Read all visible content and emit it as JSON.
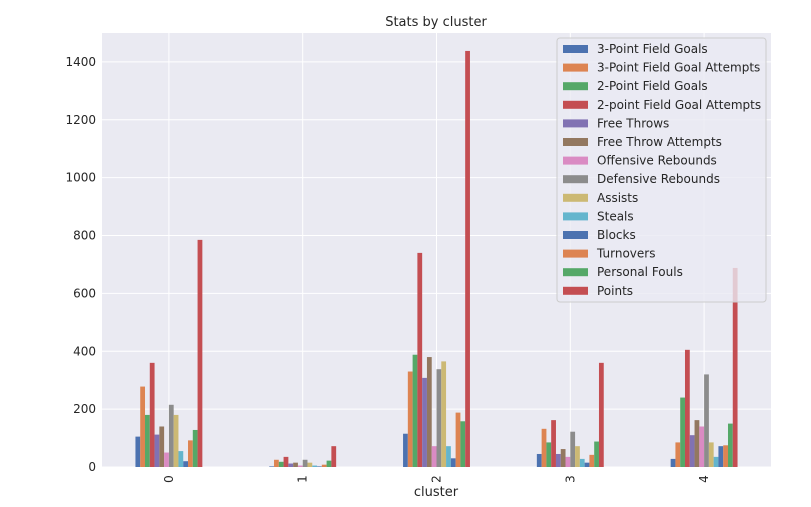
{
  "chart_data": {
    "type": "bar",
    "title": "Stats by cluster",
    "xlabel": "cluster",
    "ylabel": "",
    "categories": [
      "0",
      "1",
      "2",
      "3",
      "4"
    ],
    "ylim": [
      0,
      1500
    ],
    "yticks": [
      0,
      200,
      400,
      600,
      800,
      1000,
      1200,
      1400
    ],
    "grid": true,
    "legend_position": "top-right",
    "series": [
      {
        "name": "3-Point Field Goals",
        "color": "#4c72b0",
        "values": [
          105,
          2,
          115,
          45,
          28
        ]
      },
      {
        "name": "3-Point Field Goal Attempts",
        "color": "#dd8452",
        "values": [
          278,
          25,
          330,
          132,
          85
        ]
      },
      {
        "name": "2-Point Field Goals",
        "color": "#55a868",
        "values": [
          180,
          18,
          388,
          85,
          240
        ]
      },
      {
        "name": "2-point Field Goal Attempts",
        "color": "#c44e52",
        "values": [
          360,
          35,
          740,
          162,
          405
        ]
      },
      {
        "name": "Free Throws",
        "color": "#8172b3",
        "values": [
          112,
          12,
          308,
          45,
          110
        ]
      },
      {
        "name": "Free Throw Attempts",
        "color": "#937860",
        "values": [
          140,
          15,
          380,
          62,
          162
        ]
      },
      {
        "name": "Offensive Rebounds",
        "color": "#da8bc3",
        "values": [
          50,
          5,
          72,
          35,
          140
        ]
      },
      {
        "name": "Defensive Rebounds",
        "color": "#8c8c8c",
        "values": [
          215,
          25,
          338,
          122,
          320
        ]
      },
      {
        "name": "Assists",
        "color": "#ccb974",
        "values": [
          180,
          15,
          365,
          72,
          85
        ]
      },
      {
        "name": "Steals",
        "color": "#64b5cd",
        "values": [
          55,
          5,
          72,
          28,
          35
        ]
      },
      {
        "name": "Blocks",
        "color": "#4c72b0",
        "values": [
          20,
          2,
          30,
          15,
          72
        ]
      },
      {
        "name": "Turnovers",
        "color": "#dd8452",
        "values": [
          92,
          8,
          188,
          42,
          75
        ]
      },
      {
        "name": "Personal Fouls",
        "color": "#55a868",
        "values": [
          128,
          22,
          158,
          88,
          150
        ]
      },
      {
        "name": "Points",
        "color": "#c44e52",
        "values": [
          785,
          72,
          1438,
          360,
          688
        ]
      }
    ]
  }
}
